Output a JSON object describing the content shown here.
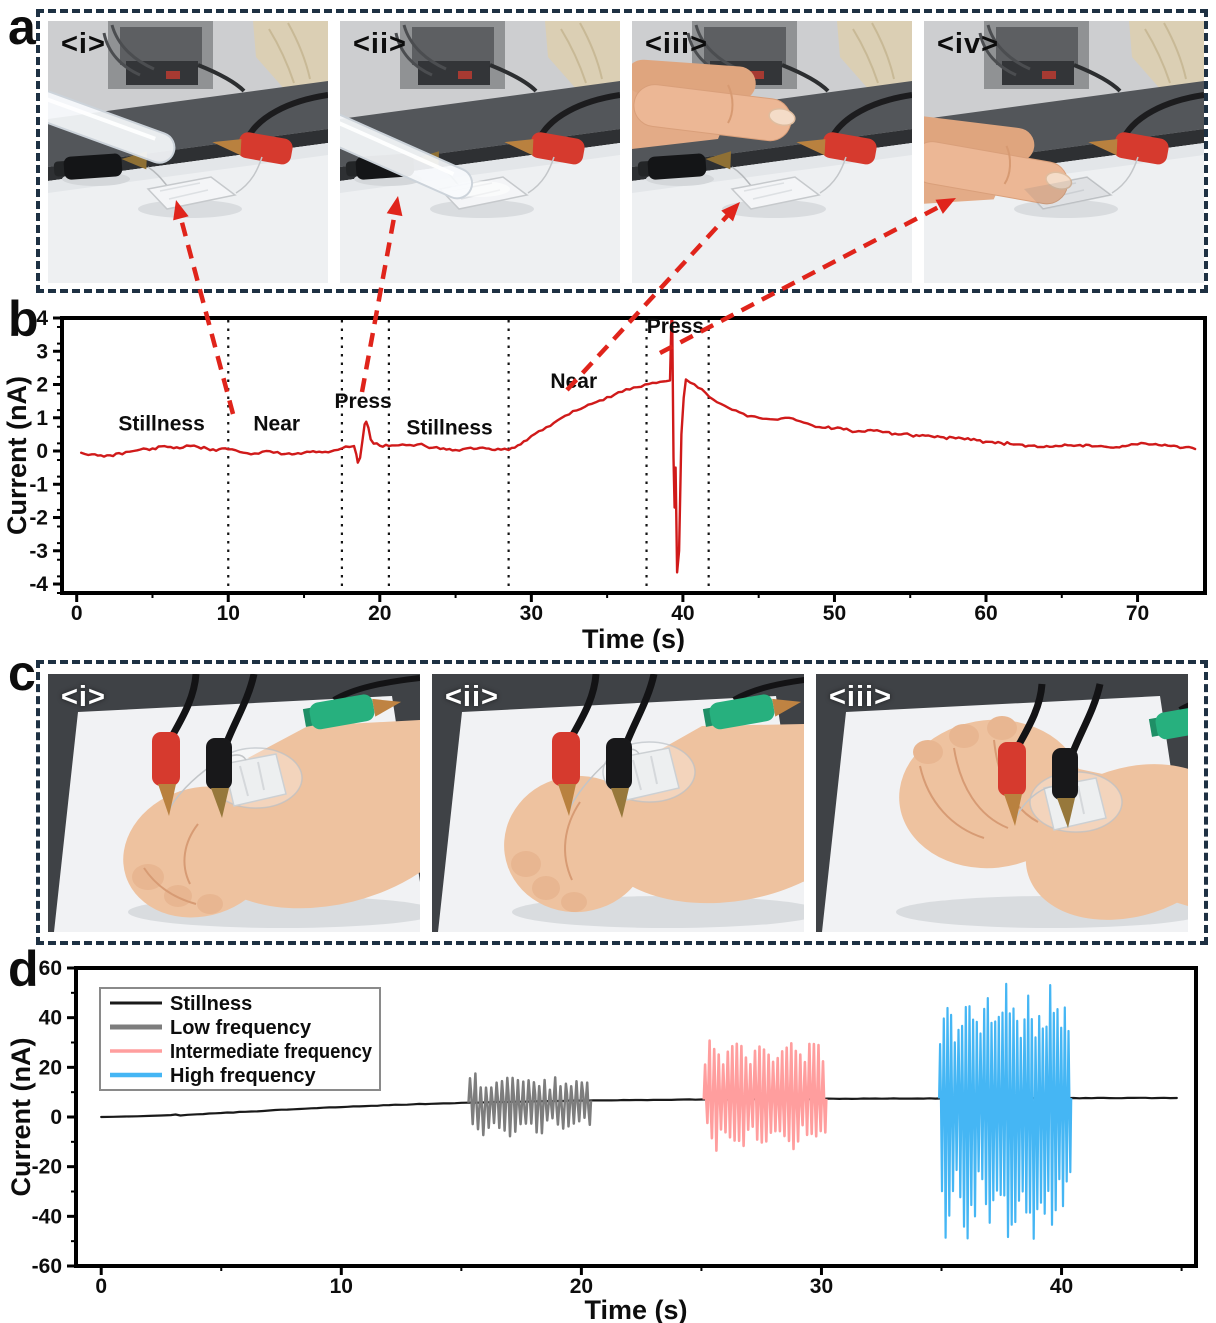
{
  "figure": {
    "panel_a": {
      "label": "a",
      "photos": [
        {
          "tag": "<i>",
          "scene": "pipette-near",
          "description": "pipette hovering near sensor"
        },
        {
          "tag": "<ii>",
          "scene": "pipette-press",
          "description": "pipette pressing sensor"
        },
        {
          "tag": "<iii>",
          "scene": "finger-near",
          "description": "finger hovering near sensor"
        },
        {
          "tag": "<iv>",
          "scene": "finger-press",
          "description": "finger pressing sensor"
        }
      ]
    },
    "panel_b": {
      "label": "b"
    },
    "panel_c": {
      "label": "c",
      "photos": [
        {
          "tag": "<i>",
          "scene": "fist-rest",
          "description": "fist at rest, sensor patch on wrist"
        },
        {
          "tag": "<ii>",
          "scene": "fist-forward",
          "description": "fist clenched forward"
        },
        {
          "tag": "<iii>",
          "scene": "fist-clench",
          "description": "fist clenched raised"
        }
      ]
    },
    "panel_d": {
      "label": "d"
    }
  },
  "colors": {
    "dashed_border": "#1e3143",
    "arrow_red": "#e0241b",
    "curve_red": "#d01a1a",
    "divider_black": "#141414"
  },
  "arrows": [
    {
      "from": [
        233,
        414
      ],
      "to": [
        176,
        200
      ]
    },
    {
      "from": [
        362,
        392
      ],
      "to": [
        398,
        196
      ]
    },
    {
      "from": [
        567,
        390
      ],
      "to": [
        740,
        202
      ]
    },
    {
      "from": [
        660,
        353
      ],
      "to": [
        956,
        198
      ]
    }
  ],
  "chart_data": [
    {
      "panel": "b",
      "type": "line",
      "title": "",
      "xlabel": "Time (s)",
      "ylabel": "Current (nA)",
      "xlim": [
        -0.97,
        74.45
      ],
      "ylim": [
        -4.27,
        4
      ],
      "xticks": [
        0,
        10,
        20,
        30,
        40,
        50,
        60,
        70
      ],
      "xminor_step": 5,
      "yticks": [
        -4,
        -3,
        -2,
        -1,
        0,
        1,
        2,
        3,
        4
      ],
      "yminor_step": 0.5,
      "grid": false,
      "region_dividers_x": [
        10,
        17.5,
        20.6,
        28.5,
        37.6,
        41.7
      ],
      "annotations": [
        {
          "text": "Stillness",
          "x": 5.6,
          "y": 0.62
        },
        {
          "text": "Near",
          "x": 13.2,
          "y": 0.62
        },
        {
          "text": "Press",
          "x": 18.9,
          "y": 1.3
        },
        {
          "text": "Stillness",
          "x": 24.6,
          "y": 0.5
        },
        {
          "text": "Near",
          "x": 32.8,
          "y": 1.9
        },
        {
          "text": "Press",
          "x": 39.5,
          "y": 3.55
        }
      ],
      "series": [
        {
          "name": "current",
          "color": "#d01a1a",
          "line_width": 2.4,
          "noise": 0.045,
          "keypoints": [
            [
              0.3,
              -0.05
            ],
            [
              1,
              -0.1
            ],
            [
              2,
              -0.13
            ],
            [
              3,
              -0.1
            ],
            [
              3.5,
              -0.02
            ],
            [
              4,
              0.02
            ],
            [
              5,
              0.08
            ],
            [
              6,
              0.12
            ],
            [
              7,
              0.1
            ],
            [
              7.5,
              0.15
            ],
            [
              8,
              0.12
            ],
            [
              9,
              0.05
            ],
            [
              10,
              0.05
            ],
            [
              10.5,
              0.02
            ],
            [
              11,
              -0.05
            ],
            [
              11.5,
              -0.1
            ],
            [
              12,
              -0.08
            ],
            [
              12.5,
              0
            ],
            [
              13,
              -0.05
            ],
            [
              13.5,
              -0.1
            ],
            [
              14,
              -0.07
            ],
            [
              15,
              -0.05
            ],
            [
              16,
              -0.02
            ],
            [
              17,
              0.02
            ],
            [
              17.5,
              0.08
            ],
            [
              18,
              0.12
            ],
            [
              18.3,
              0.15
            ],
            [
              18.45,
              -0.1
            ],
            [
              18.55,
              -0.35
            ],
            [
              18.7,
              -0.2
            ],
            [
              18.85,
              0.3
            ],
            [
              19.0,
              0.8
            ],
            [
              19.1,
              0.88
            ],
            [
              19.25,
              0.7
            ],
            [
              19.4,
              0.35
            ],
            [
              19.6,
              0.22
            ],
            [
              20,
              0.16
            ],
            [
              20.6,
              0.15
            ],
            [
              21,
              0.17
            ],
            [
              21.5,
              0.2
            ],
            [
              22,
              0.18
            ],
            [
              22.5,
              0.2
            ],
            [
              23,
              0.15
            ],
            [
              23.5,
              0.1
            ],
            [
              24,
              0.06
            ],
            [
              25,
              0.03
            ],
            [
              25.5,
              0.06
            ],
            [
              26,
              0.1
            ],
            [
              27,
              0.08
            ],
            [
              28,
              0.04
            ],
            [
              28.5,
              0.03
            ],
            [
              28.9,
              0.1
            ],
            [
              29.3,
              0.2
            ],
            [
              29.7,
              0.32
            ],
            [
              30,
              0.45
            ],
            [
              30.5,
              0.6
            ],
            [
              31,
              0.72
            ],
            [
              31.5,
              0.85
            ],
            [
              32,
              1.0
            ],
            [
              32.5,
              1.1
            ],
            [
              33,
              1.22
            ],
            [
              33.5,
              1.32
            ],
            [
              34,
              1.42
            ],
            [
              34.5,
              1.52
            ],
            [
              35,
              1.62
            ],
            [
              35.5,
              1.7
            ],
            [
              36,
              1.78
            ],
            [
              36.5,
              1.85
            ],
            [
              37,
              1.92
            ],
            [
              37.5,
              2.0
            ],
            [
              38,
              2.05
            ],
            [
              38.5,
              2.08
            ],
            [
              38.9,
              2.1
            ],
            [
              39.15,
              2.12
            ],
            [
              39.28,
              4.7
            ],
            [
              39.38,
              -0.2
            ],
            [
              39.45,
              -1.7
            ],
            [
              39.52,
              -0.5
            ],
            [
              39.62,
              -3.65
            ],
            [
              39.75,
              -3.0
            ],
            [
              39.9,
              0.5
            ],
            [
              40.05,
              1.6
            ],
            [
              40.2,
              2.15
            ],
            [
              40.5,
              2.05
            ],
            [
              41,
              1.9
            ],
            [
              41.5,
              1.75
            ],
            [
              42,
              1.55
            ],
            [
              42.5,
              1.42
            ],
            [
              43,
              1.3
            ],
            [
              43.5,
              1.22
            ],
            [
              44,
              1.12
            ],
            [
              44.5,
              1.05
            ],
            [
              45,
              1.0
            ],
            [
              45.5,
              0.97
            ],
            [
              46,
              0.95
            ],
            [
              46.5,
              0.98
            ],
            [
              47,
              1.0
            ],
            [
              47.5,
              0.92
            ],
            [
              48,
              0.85
            ],
            [
              48.5,
              0.78
            ],
            [
              49,
              0.72
            ],
            [
              50,
              0.68
            ],
            [
              51,
              0.62
            ],
            [
              52,
              0.58
            ],
            [
              53,
              0.6
            ],
            [
              54,
              0.52
            ],
            [
              55,
              0.48
            ],
            [
              56,
              0.46
            ],
            [
              57,
              0.42
            ],
            [
              58,
              0.38
            ],
            [
              59,
              0.33
            ],
            [
              60,
              0.28
            ],
            [
              61,
              0.24
            ],
            [
              62,
              0.2
            ],
            [
              63,
              0.16
            ],
            [
              64,
              0.15
            ],
            [
              65,
              0.15
            ],
            [
              66,
              0.17
            ],
            [
              67,
              0.14
            ],
            [
              68,
              0.12
            ],
            [
              69,
              0.15
            ],
            [
              70,
              0.2
            ],
            [
              70.5,
              0.23
            ],
            [
              71,
              0.2
            ],
            [
              72,
              0.16
            ],
            [
              73,
              0.1
            ],
            [
              73.8,
              0.06
            ]
          ]
        }
      ]
    },
    {
      "panel": "d",
      "type": "line",
      "title": "",
      "xlabel": "Time (s)",
      "ylabel": "Current (nA)",
      "xlim": [
        -1.05,
        45.6
      ],
      "ylim": [
        -60,
        60
      ],
      "xticks": [
        0,
        10,
        20,
        30,
        40
      ],
      "xminor_step": 5,
      "yticks": [
        -60,
        -40,
        -20,
        0,
        20,
        40,
        60
      ],
      "yminor_step": 10,
      "grid": false,
      "legend": {
        "position": "upper-left",
        "entries": [
          {
            "label": "Stillness",
            "color": "#1a1a1a",
            "lw": 3
          },
          {
            "label": "Low frequency",
            "color": "#7d7d7d",
            "lw": 5
          },
          {
            "label": "Intermediate frequency",
            "color": "#ff9e9e",
            "lw": 3.5
          },
          {
            "label": "High frequency",
            "color": "#45b6f4",
            "lw": 4.5
          }
        ]
      },
      "series": [
        {
          "name": "Stillness",
          "color": "#1a1a1a",
          "line_width": 2.2,
          "noise": 0.09,
          "keypoints": [
            [
              0,
              0
            ],
            [
              0.5,
              0.1
            ],
            [
              1,
              0.2
            ],
            [
              1.5,
              0.3
            ],
            [
              2,
              0.45
            ],
            [
              2.5,
              0.6
            ],
            [
              2.9,
              0.75
            ],
            [
              3.1,
              1.0
            ],
            [
              3.3,
              0.6
            ],
            [
              3.6,
              0.9
            ],
            [
              4,
              1.1
            ],
            [
              5,
              1.6
            ],
            [
              6,
              2.1
            ],
            [
              7,
              2.6
            ],
            [
              8,
              3.1
            ],
            [
              9,
              3.6
            ],
            [
              10,
              4.0
            ],
            [
              11,
              4.4
            ],
            [
              12,
              4.8
            ],
            [
              13,
              5.1
            ],
            [
              14,
              5.4
            ],
            [
              15,
              5.7
            ],
            [
              16,
              5.9
            ],
            [
              17,
              6.1
            ],
            [
              18,
              6.3
            ],
            [
              19,
              6.45
            ],
            [
              20,
              6.6
            ],
            [
              21,
              6.7
            ],
            [
              22,
              6.8
            ],
            [
              23,
              6.9
            ],
            [
              24,
              7.0
            ],
            [
              25,
              7.05
            ],
            [
              26,
              7.1
            ],
            [
              27,
              7.15
            ],
            [
              28,
              7.2
            ],
            [
              29,
              7.25
            ],
            [
              30,
              7.3
            ],
            [
              31,
              7.35
            ],
            [
              32,
              7.4
            ],
            [
              34,
              7.45
            ],
            [
              36,
              7.5
            ],
            [
              38,
              7.55
            ],
            [
              40,
              7.6
            ],
            [
              42,
              7.6
            ],
            [
              44,
              7.65
            ],
            [
              44.8,
              7.65
            ]
          ]
        }
      ],
      "bursts": [
        {
          "name": "Low frequency",
          "color": "#7d7d7d",
          "line_width": 2.5,
          "t_start": 15.3,
          "t_end": 20.4,
          "cycles": 23,
          "peak_range": [
            12,
            20
          ],
          "dip_range": [
            -8,
            -2
          ]
        },
        {
          "name": "Intermediate frequency",
          "color": "#ff9e9e",
          "line_width": 2.6,
          "t_start": 25.1,
          "t_end": 30.2,
          "cycles": 27,
          "peak_range": [
            26,
            32
          ],
          "dip_range": [
            -14,
            -6
          ]
        },
        {
          "name": "High frequency",
          "color": "#45b6f4",
          "line_width": 2.2,
          "t_start": 34.9,
          "t_end": 40.4,
          "cycles": 36,
          "peak_range": [
            38,
            55
          ],
          "dip_range": [
            -52,
            -33
          ]
        }
      ]
    }
  ]
}
